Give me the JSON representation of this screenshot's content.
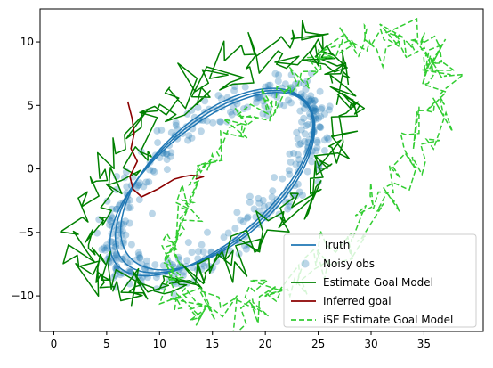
{
  "chart_data": {
    "type": "line",
    "xlim": [
      -1.3,
      40.6
    ],
    "ylim": [
      -12.8,
      12.6
    ],
    "x_ticks": [
      0,
      5,
      10,
      15,
      20,
      25,
      30,
      35
    ],
    "y_ticks": [
      -10,
      -5,
      0,
      5,
      10
    ],
    "grid": false,
    "legend_position": "lower-right",
    "colors": {
      "truth": "#1f77b4",
      "noisy": "#1f77b4",
      "estimate": "#008000",
      "inferred": "#8b0000",
      "ise": "#32cd32"
    },
    "series": [
      {
        "key": "truth",
        "name": "Truth",
        "style": "line",
        "ellipse": {
          "center": [
            15.2,
            -1.0
          ],
          "a": 11.0,
          "b": 4.8,
          "angle_deg": 33
        }
      },
      {
        "key": "noisy",
        "name": "Noisy obs",
        "style": "scatter",
        "ellipse": {
          "center": [
            15.2,
            -1.0
          ],
          "a": 11.0,
          "b": 4.8,
          "angle_deg": 33,
          "noise": 0.8,
          "count": 420
        }
      },
      {
        "key": "estimate",
        "name": "Estimate Goal Model",
        "style": "line",
        "ellipse": {
          "center": [
            15.0,
            0.2
          ],
          "a": 14.5,
          "b": 7.0,
          "angle_deg": 33,
          "noise": 0.8,
          "count": 300
        }
      },
      {
        "key": "inferred",
        "name": "Inferred goal",
        "style": "line",
        "points": [
          [
            7.0,
            5.3
          ],
          [
            7.4,
            4.0
          ],
          [
            7.6,
            2.8
          ],
          [
            7.3,
            1.6
          ],
          [
            7.9,
            0.6
          ],
          [
            7.2,
            -0.6
          ],
          [
            7.5,
            -1.6
          ],
          [
            8.3,
            -2.2
          ],
          [
            9.8,
            -1.6
          ],
          [
            11.4,
            -0.8
          ],
          [
            12.3,
            -0.6
          ],
          [
            13.0,
            -0.5
          ],
          [
            14.2,
            -0.6
          ],
          [
            13.4,
            -0.8
          ]
        ]
      },
      {
        "key": "ise",
        "name": "iSE Estimate Goal Model",
        "style": "dashed",
        "ellipse": {
          "center": [
            24.0,
            -0.5
          ],
          "a": 15.5,
          "b": 6.8,
          "angle_deg": 38,
          "noise": 0.7,
          "count": 320
        }
      }
    ]
  }
}
